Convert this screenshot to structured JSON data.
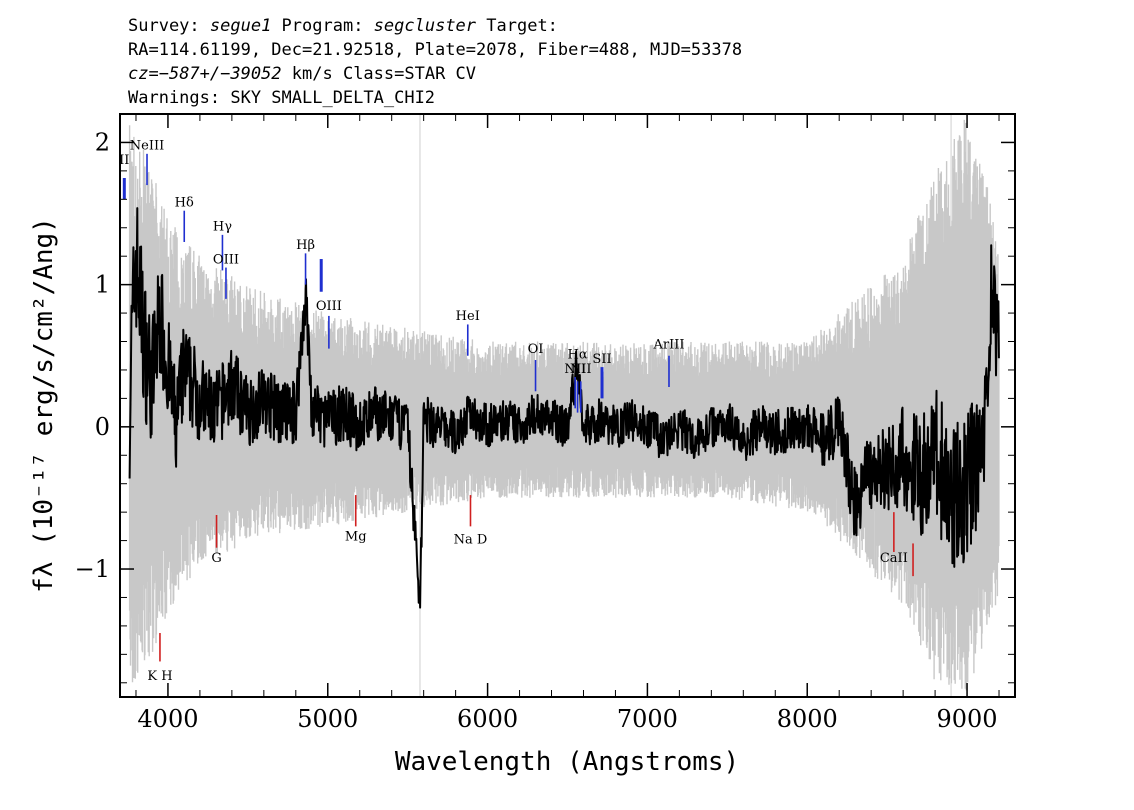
{
  "header": {
    "line1_prefix": "Survey: ",
    "survey": "segue1",
    "line1_program_label": " Program: ",
    "program": "segcluster",
    "line1_suffix": " Target:",
    "line2": "RA=114.61199, Dec=21.92518, Plate=2078, Fiber=488, MJD=53378",
    "line3_cz_label": "cz=",
    "line3_cz_value": "−587+/−39052",
    "line3_suffix": " km/s Class=STAR CV",
    "line4": "Warnings: SKY SMALL_DELTA_CHI2"
  },
  "chart_data": {
    "type": "line",
    "xlabel": "Wavelength (Angstroms)",
    "ylabel": "fλ (10⁻¹⁷ erg/s/cm²/Ang)",
    "xlim": [
      3700,
      9300
    ],
    "ylim": [
      -1.9,
      2.2
    ],
    "x_ticks": [
      4000,
      5000,
      6000,
      7000,
      8000,
      9000
    ],
    "y_ticks": [
      -1,
      0,
      1,
      2
    ],
    "y_tick_labels": [
      "−1",
      "0",
      "1",
      "2"
    ],
    "series": [
      {
        "name": "",
        "role": "flux",
        "color": "#000000",
        "x": [
          3760,
          3800,
          3850,
          3900,
          3950,
          4000,
          4050,
          4100,
          4150,
          4200,
          4300,
          4400,
          4500,
          4600,
          4700,
          4800,
          4861,
          4900,
          5000,
          5100,
          5200,
          5300,
          5400,
          5500,
          5577,
          5600,
          5700,
          5800,
          5900,
          6000,
          6100,
          6200,
          6300,
          6400,
          6500,
          6563,
          6600,
          6700,
          6800,
          6900,
          7000,
          7100,
          7200,
          7300,
          7400,
          7500,
          7600,
          7700,
          7800,
          7900,
          8000,
          8100,
          8200,
          8300,
          8400,
          8500,
          8600,
          8700,
          8800,
          8900,
          9000,
          9100,
          9150,
          9200
        ],
        "y": [
          0.2,
          1.2,
          0.6,
          0.3,
          0.8,
          0.4,
          0.0,
          0.4,
          0.3,
          0.2,
          0.1,
          0.3,
          0.1,
          0.2,
          0.1,
          0.1,
          0.95,
          0.1,
          0.05,
          0.1,
          0.0,
          0.1,
          0.05,
          0.0,
          -1.25,
          0.05,
          0.0,
          -0.05,
          0.1,
          0.0,
          0.05,
          0.0,
          0.1,
          0.05,
          0.0,
          0.45,
          0.0,
          0.05,
          0.0,
          0.05,
          0.0,
          -0.1,
          0.0,
          -0.1,
          0.0,
          0.05,
          -0.1,
          0.0,
          -0.05,
          0.0,
          0.0,
          -0.1,
          0.0,
          -0.55,
          -0.3,
          -0.3,
          -0.2,
          -0.35,
          -0.2,
          -0.5,
          -0.4,
          -0.2,
          0.9,
          0.5
        ]
      },
      {
        "name": "",
        "role": "error-band",
        "color": "#c8c8c8",
        "x": [
          3760,
          3900,
          4000,
          4200,
          4500,
          5000,
          5500,
          6000,
          6500,
          7000,
          7500,
          8000,
          8300,
          8600,
          8800,
          9000,
          9200
        ],
        "upper": [
          2.2,
          1.8,
          1.5,
          1.2,
          1.0,
          0.8,
          0.7,
          0.6,
          0.6,
          0.6,
          0.6,
          0.6,
          0.9,
          1.2,
          1.8,
          2.2,
          1.4
        ],
        "lower": [
          -1.9,
          -1.6,
          -1.3,
          -1.0,
          -0.8,
          -0.7,
          -0.6,
          -0.5,
          -0.5,
          -0.5,
          -0.5,
          -0.6,
          -0.9,
          -1.3,
          -1.8,
          -1.9,
          -1.2
        ]
      }
    ],
    "emission_lines": [
      {
        "label": "II",
        "x": 3727,
        "ymin": 1.6,
        "ymax": 1.75,
        "label_y": 1.85,
        "thick": true
      },
      {
        "label": "NeIII",
        "x": 3869,
        "ymin": 1.7,
        "ymax": 1.92,
        "label_y": 1.95
      },
      {
        "label": "Hδ",
        "x": 4102,
        "ymin": 1.3,
        "ymax": 1.52,
        "label_y": 1.55
      },
      {
        "label": "Hγ",
        "x": 4341,
        "ymin": 1.1,
        "ymax": 1.35,
        "label_y": 1.38
      },
      {
        "label": "OIII",
        "x": 4363,
        "ymin": 0.9,
        "ymax": 1.12,
        "label_y": 1.15
      },
      {
        "label": "Hβ",
        "x": 4861,
        "ymin": 1.0,
        "ymax": 1.22,
        "label_y": 1.25
      },
      {
        "label": "",
        "x": 4959,
        "ymin": 0.95,
        "ymax": 1.18,
        "label_y": 1.2,
        "thick": true
      },
      {
        "label": "OIII",
        "x": 5007,
        "ymin": 0.55,
        "ymax": 0.78,
        "label_y": 0.82
      },
      {
        "label": "HeI",
        "x": 5876,
        "ymin": 0.5,
        "ymax": 0.72,
        "label_y": 0.75
      },
      {
        "label": "OI",
        "x": 6300,
        "ymin": 0.25,
        "ymax": 0.47,
        "label_y": 0.52
      },
      {
        "label": "NII",
        "x": 6548,
        "ymin": 0.13,
        "ymax": 0.35,
        "label_y": 0.38
      },
      {
        "label": "Hα",
        "x": 6563,
        "ymin": 0.1,
        "ymax": 0.32,
        "label_y": 0.48
      },
      {
        "label": "NII",
        "x": 6583,
        "ymin": 0.1,
        "ymax": 0.32,
        "label_y": 0.38
      },
      {
        "label": "SII",
        "x": 6716,
        "ymin": 0.2,
        "ymax": 0.42,
        "label_y": 0.45,
        "thick": true
      },
      {
        "label": "ArIII",
        "x": 7135,
        "ymin": 0.28,
        "ymax": 0.5,
        "label_y": 0.55
      }
    ],
    "absorption_lines": [
      {
        "label": "K H",
        "x": 3950,
        "ymin": -1.65,
        "ymax": -1.45,
        "label_y": -1.78
      },
      {
        "label": "G",
        "x": 4304,
        "ymin": -0.85,
        "ymax": -0.62,
        "label_y": -0.95
      },
      {
        "label": "Mg",
        "x": 5175,
        "ymin": -0.7,
        "ymax": -0.48,
        "label_y": -0.8
      },
      {
        "label": "Na D",
        "x": 5893,
        "ymin": -0.7,
        "ymax": -0.48,
        "label_y": -0.82
      },
      {
        "label": "CaII",
        "x": 8542,
        "ymin": -0.88,
        "ymax": -0.6,
        "label_y": -0.95
      },
      {
        "label": "",
        "x": 8662,
        "ymin": -1.05,
        "ymax": -0.82,
        "label_y": -1.05
      }
    ]
  }
}
